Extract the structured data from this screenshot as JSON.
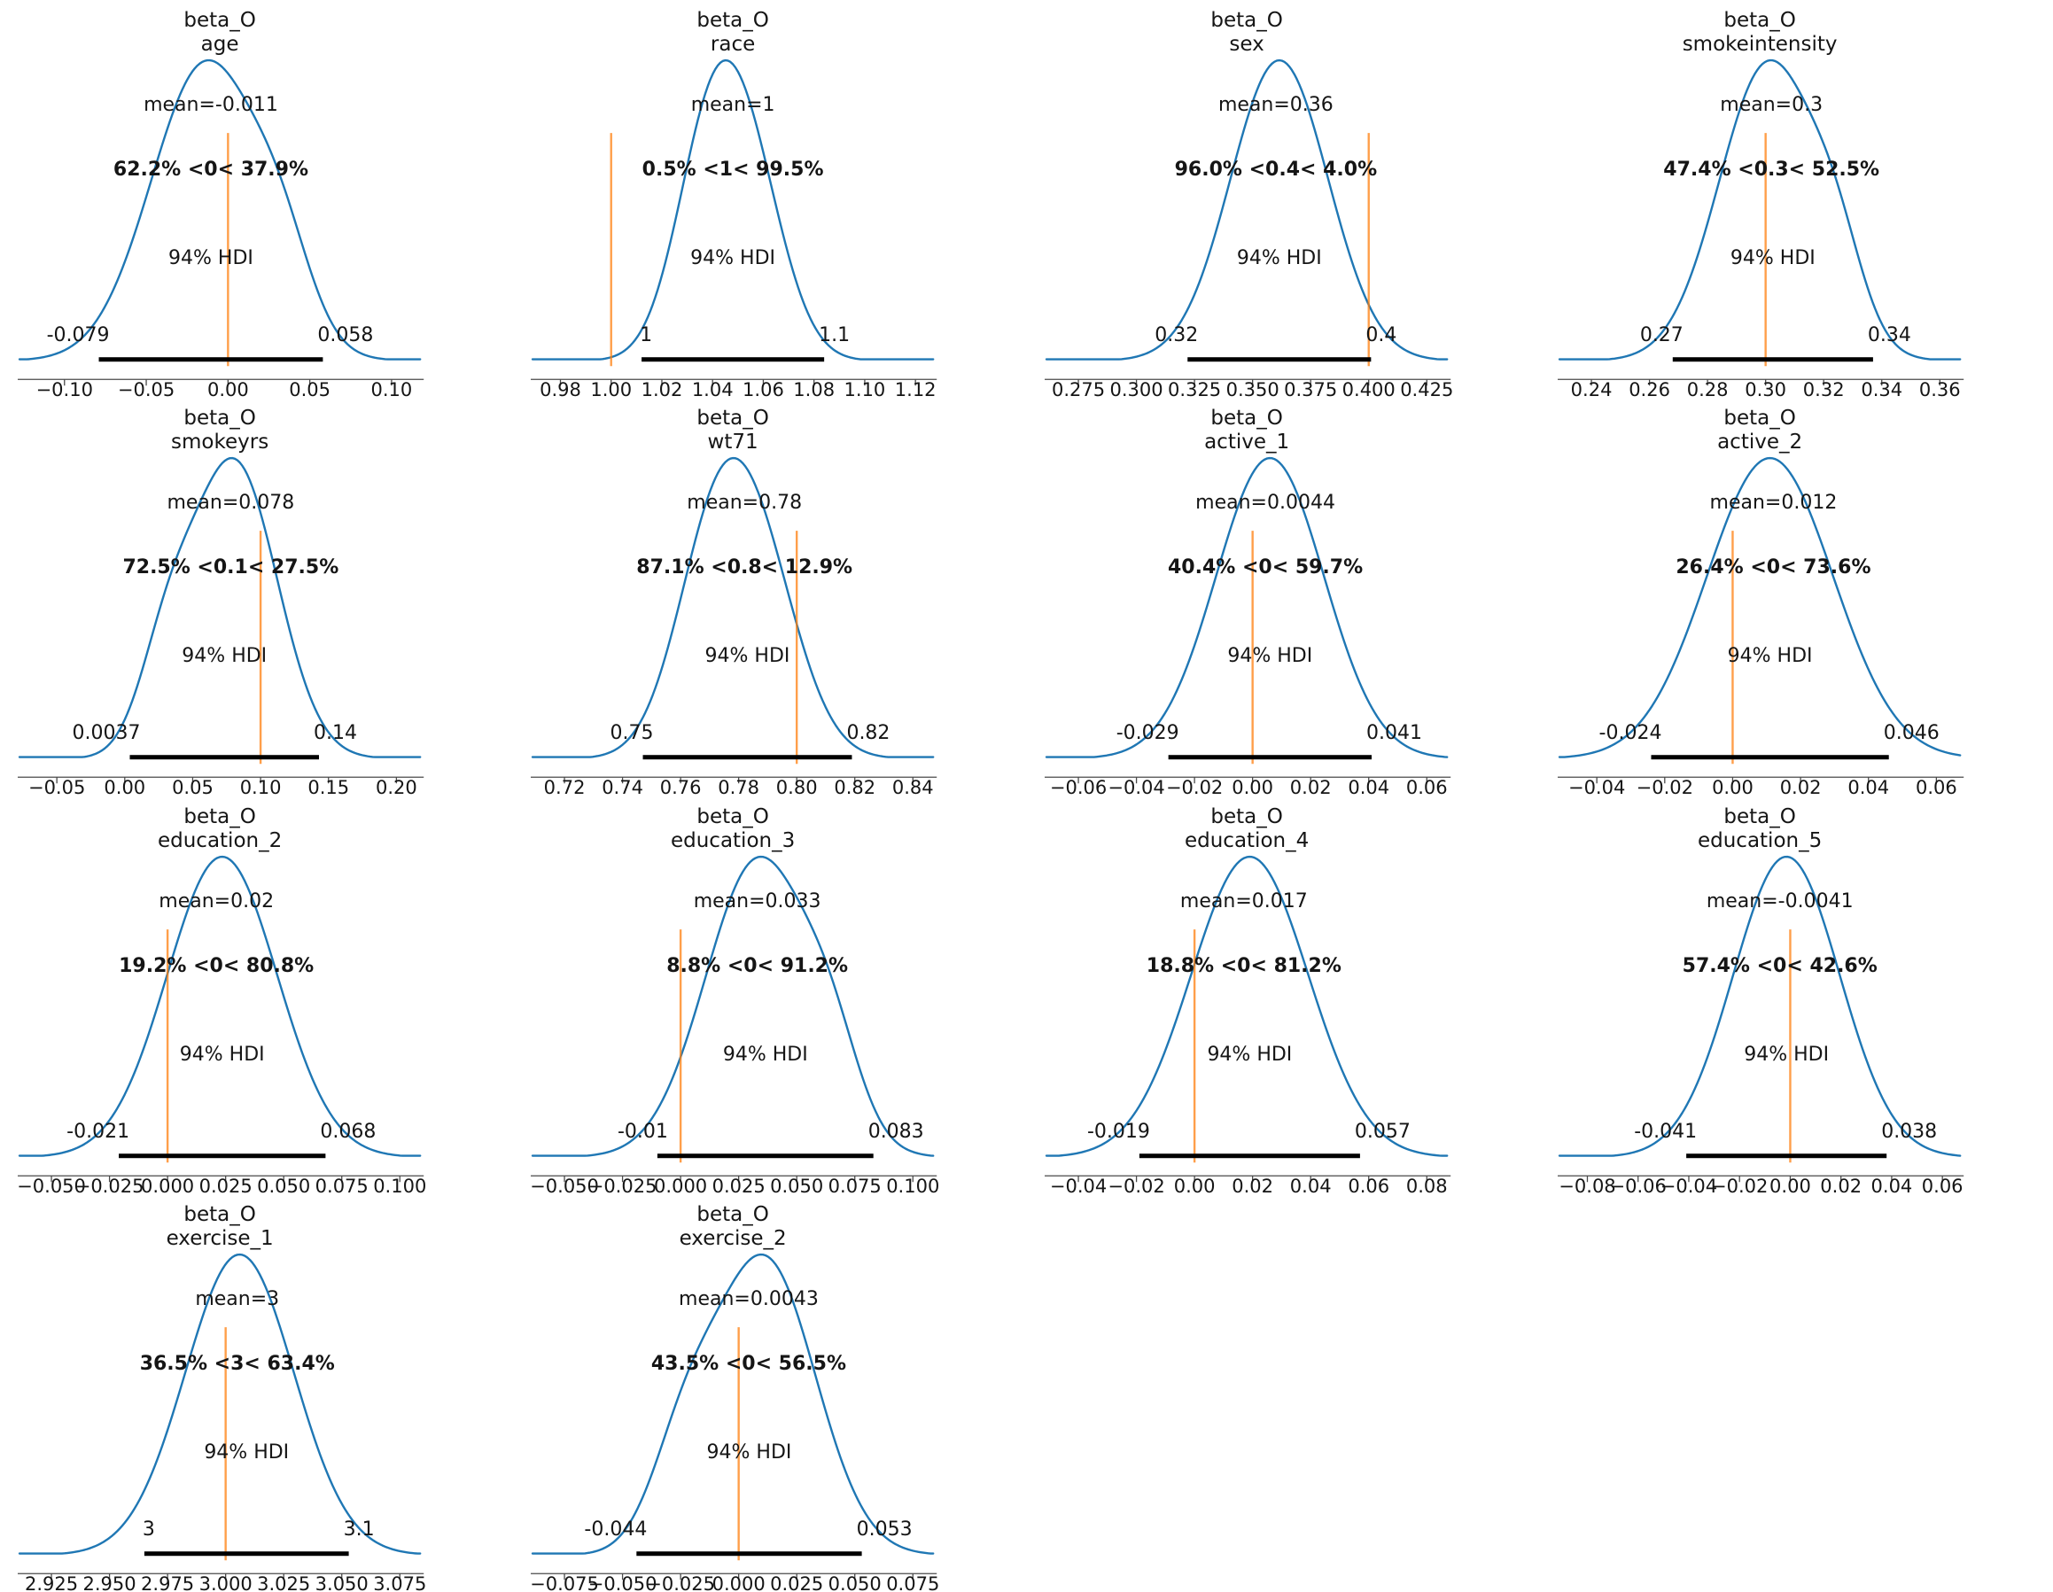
{
  "figure": {
    "grid": {
      "cols": 4,
      "rows": 4
    },
    "colors": {
      "curve": "#1f77b4",
      "ref_line": "#ff7f0e",
      "ref_text": "#ff7f0e",
      "hdi_bar": "#000000",
      "text": "#151515",
      "spine": "#4a4a4a",
      "background": "#ffffff"
    }
  },
  "chart_data": [
    {
      "type": "kde-posterior",
      "title": "beta_O",
      "subtitle": "age",
      "mean_label": "mean=-0.011",
      "mean_pos": -0.0105,
      "ref_val": 0,
      "pct_label": "62.2% <0< 37.9%",
      "hdi": {
        "label": "94% HDI",
        "low": -0.079,
        "high": 0.058,
        "low_label": "-0.079",
        "high_label": "0.058"
      },
      "xticks": [
        -0.1,
        -0.05,
        0.0,
        0.05,
        0.1
      ],
      "xtick_labels": [
        "−0.10",
        "−0.05",
        "0.00",
        "0.05",
        "0.10"
      ],
      "kde": {
        "center": -0.0105,
        "sigma": 0.0364,
        "shape": "right_shoulder"
      }
    },
    {
      "type": "kde-posterior",
      "title": "beta_O",
      "subtitle": "race",
      "mean_label": "mean=1",
      "mean_pos": 1.048,
      "ref_val": 1,
      "pct_label": "0.5% <1< 99.5%",
      "hdi": {
        "label": "94% HDI",
        "low": 1.012,
        "high": 1.084,
        "low_label": "1",
        "high_label": "1.1"
      },
      "xticks": [
        0.98,
        1.0,
        1.02,
        1.04,
        1.06,
        1.08,
        1.1,
        1.12
      ],
      "xtick_labels": [
        "0.98",
        "1.00",
        "1.02",
        "1.04",
        "1.06",
        "1.08",
        "1.10",
        "1.12"
      ],
      "kde": {
        "center": 1.048,
        "sigma": 0.0191,
        "shape": "bimodal"
      }
    },
    {
      "type": "kde-posterior",
      "title": "beta_O",
      "subtitle": "sex",
      "mean_label": "mean=0.36",
      "mean_pos": 0.36,
      "ref_val": 0.4,
      "pct_label": "96.0% <0.4< 4.0%",
      "hdi": {
        "label": "94% HDI",
        "low": 0.322,
        "high": 0.401,
        "low_label": "0.32",
        "high_label": "0.4"
      },
      "xticks": [
        0.275,
        0.3,
        0.325,
        0.35,
        0.375,
        0.4,
        0.425
      ],
      "xtick_labels": [
        "0.275",
        "0.300",
        "0.325",
        "0.350",
        "0.375",
        "0.400",
        "0.425"
      ],
      "kde": {
        "center": 0.3615,
        "sigma": 0.021,
        "shape": "unimodal"
      }
    },
    {
      "type": "kde-posterior",
      "title": "beta_O",
      "subtitle": "smokeintensity",
      "mean_label": "mean=0.3",
      "mean_pos": 0.302,
      "ref_val": 0.3,
      "pct_label": "47.4% <0.3< 52.5%",
      "hdi": {
        "label": "94% HDI",
        "low": 0.268,
        "high": 0.337,
        "low_label": "0.27",
        "high_label": "0.34"
      },
      "xticks": [
        0.24,
        0.26,
        0.28,
        0.3,
        0.32,
        0.34,
        0.36
      ],
      "xtick_labels": [
        "0.24",
        "0.26",
        "0.28",
        "0.30",
        "0.32",
        "0.34",
        "0.36"
      ],
      "kde": {
        "center": 0.3025,
        "sigma": 0.0184,
        "shape": "right_shoulder"
      }
    },
    {
      "type": "kde-posterior",
      "title": "beta_O",
      "subtitle": "smokeyrs",
      "mean_label": "mean=0.078",
      "mean_pos": 0.078,
      "ref_val": 0.1,
      "pct_label": "72.5% <0.1< 27.5%",
      "hdi": {
        "label": "94% HDI",
        "low": 0.0037,
        "high": 0.143,
        "low_label": "0.0037",
        "high_label": "0.14"
      },
      "xticks": [
        -0.05,
        0.0,
        0.05,
        0.1,
        0.15,
        0.2
      ],
      "xtick_labels": [
        "−0.05",
        "0.00",
        "0.05",
        "0.10",
        "0.15",
        "0.20"
      ],
      "kde": {
        "center": 0.0734,
        "sigma": 0.037,
        "shape": "left_shoulder"
      }
    },
    {
      "type": "kde-posterior",
      "title": "beta_O",
      "subtitle": "wt71",
      "mean_label": "mean=0.78",
      "mean_pos": 0.782,
      "ref_val": 0.8,
      "pct_label": "87.1% <0.8< 12.9%",
      "hdi": {
        "label": "94% HDI",
        "low": 0.747,
        "high": 0.819,
        "low_label": "0.75",
        "high_label": "0.82"
      },
      "xticks": [
        0.72,
        0.74,
        0.76,
        0.78,
        0.8,
        0.82,
        0.84
      ],
      "xtick_labels": [
        "0.72",
        "0.74",
        "0.76",
        "0.78",
        "0.80",
        "0.82",
        "0.84"
      ],
      "kde": {
        "center": 0.781,
        "sigma": 0.0191,
        "shape": "bimodal"
      }
    },
    {
      "type": "kde-posterior",
      "title": "beta_O",
      "subtitle": "active_1",
      "mean_label": "mean=0.0044",
      "mean_pos": 0.0044,
      "ref_val": 0,
      "pct_label": "40.4% <0< 59.7%",
      "hdi": {
        "label": "94% HDI",
        "low": -0.029,
        "high": 0.041,
        "low_label": "-0.029",
        "high_label": "0.041"
      },
      "xticks": [
        -0.06,
        -0.04,
        -0.02,
        0.0,
        0.02,
        0.04,
        0.06
      ],
      "xtick_labels": [
        "−0.06",
        "−0.04",
        "−0.02",
        "0.00",
        "0.02",
        "0.04",
        "0.06"
      ],
      "kde": {
        "center": 0.006,
        "sigma": 0.0186,
        "shape": "unimodal"
      }
    },
    {
      "type": "kde-posterior",
      "title": "beta_O",
      "subtitle": "active_2",
      "mean_label": "mean=0.012",
      "mean_pos": 0.012,
      "ref_val": 0,
      "pct_label": "26.4% <0< 73.6%",
      "hdi": {
        "label": "94% HDI",
        "low": -0.024,
        "high": 0.046,
        "low_label": "-0.024",
        "high_label": "0.046"
      },
      "xticks": [
        -0.04,
        -0.02,
        0.0,
        0.02,
        0.04,
        0.06
      ],
      "xtick_labels": [
        "−0.04",
        "−0.02",
        "0.00",
        "0.02",
        "0.04",
        "0.06"
      ],
      "kde": {
        "center": 0.011,
        "sigma": 0.0186,
        "shape": "unimodal"
      }
    },
    {
      "type": "kde-posterior",
      "title": "beta_O",
      "subtitle": "education_2",
      "mean_label": "mean=0.02",
      "mean_pos": 0.021,
      "ref_val": 0,
      "pct_label": "19.2% <0< 80.8%",
      "hdi": {
        "label": "94% HDI",
        "low": -0.021,
        "high": 0.068,
        "low_label": "-0.021",
        "high_label": "0.068"
      },
      "xticks": [
        -0.05,
        -0.025,
        0.0,
        0.025,
        0.05,
        0.075,
        0.1
      ],
      "xtick_labels": [
        "−0.050",
        "−0.025",
        "0.000",
        "0.025",
        "0.050",
        "0.075",
        "0.100"
      ],
      "kde": {
        "center": 0.0235,
        "sigma": 0.0237,
        "shape": "unimodal"
      }
    },
    {
      "type": "kde-posterior",
      "title": "beta_O",
      "subtitle": "education_3",
      "mean_label": "mean=0.033",
      "mean_pos": 0.033,
      "ref_val": 0,
      "pct_label": "8.8% <0< 91.2%",
      "hdi": {
        "label": "94% HDI",
        "low": -0.01,
        "high": 0.083,
        "low_label": "-0.01",
        "high_label": "0.083"
      },
      "xticks": [
        -0.05,
        -0.025,
        0.0,
        0.025,
        0.05,
        0.075,
        0.1
      ],
      "xtick_labels": [
        "−0.050",
        "−0.025",
        "0.000",
        "0.025",
        "0.050",
        "0.075",
        "0.100"
      ],
      "kde": {
        "center": 0.0355,
        "sigma": 0.0247,
        "shape": "right_shoulder"
      }
    },
    {
      "type": "kde-posterior",
      "title": "beta_O",
      "subtitle": "education_4",
      "mean_label": "mean=0.017",
      "mean_pos": 0.017,
      "ref_val": 0,
      "pct_label": "18.8% <0< 81.2%",
      "hdi": {
        "label": "94% HDI",
        "low": -0.019,
        "high": 0.057,
        "low_label": "-0.019",
        "high_label": "0.057"
      },
      "xticks": [
        -0.04,
        -0.02,
        0.0,
        0.02,
        0.04,
        0.06,
        0.08
      ],
      "xtick_labels": [
        "−0.04",
        "−0.02",
        "0.00",
        "0.02",
        "0.04",
        "0.06",
        "0.08"
      ],
      "kde": {
        "center": 0.019,
        "sigma": 0.0202,
        "shape": "unimodal"
      }
    },
    {
      "type": "kde-posterior",
      "title": "beta_O",
      "subtitle": "education_5",
      "mean_label": "mean=-0.0041",
      "mean_pos": -0.0041,
      "ref_val": 0,
      "pct_label": "57.4% <0< 42.6%",
      "hdi": {
        "label": "94% HDI",
        "low": -0.041,
        "high": 0.038,
        "low_label": "-0.041",
        "high_label": "0.038"
      },
      "xticks": [
        -0.08,
        -0.06,
        -0.04,
        -0.02,
        0.0,
        0.02,
        0.04,
        0.06
      ],
      "xtick_labels": [
        "−0.08",
        "−0.06",
        "−0.04",
        "−0.02",
        "0.00",
        "0.02",
        "0.04",
        "0.06"
      ],
      "kde": {
        "center": -0.0015,
        "sigma": 0.021,
        "shape": "unimodal"
      }
    },
    {
      "type": "kde-posterior",
      "title": "beta_O",
      "subtitle": "exercise_1",
      "mean_label": "mean=3",
      "mean_pos": 3.005,
      "ref_val": 3,
      "pct_label": "36.5% <3< 63.4%",
      "hdi": {
        "label": "94% HDI",
        "low": 2.965,
        "high": 3.053,
        "low_label": "3",
        "high_label": "3.1"
      },
      "xticks": [
        2.925,
        2.95,
        2.975,
        3.0,
        3.025,
        3.05,
        3.075
      ],
      "xtick_labels": [
        "2.925",
        "2.950",
        "2.975",
        "3.000",
        "3.025",
        "3.050",
        "3.075"
      ],
      "kde": {
        "center": 3.006,
        "sigma": 0.0234,
        "shape": "unimodal"
      }
    },
    {
      "type": "kde-posterior",
      "title": "beta_O",
      "subtitle": "exercise_2",
      "mean_label": "mean=0.0043",
      "mean_pos": 0.0043,
      "ref_val": 0,
      "pct_label": "43.5% <0< 56.5%",
      "hdi": {
        "label": "94% HDI",
        "low": -0.044,
        "high": 0.053,
        "low_label": "-0.044",
        "high_label": "0.053"
      },
      "xticks": [
        -0.075,
        -0.05,
        -0.025,
        0.0,
        0.025,
        0.05,
        0.075
      ],
      "xtick_labels": [
        "−0.075",
        "−0.050",
        "−0.025",
        "0.000",
        "0.025",
        "0.050",
        "0.075"
      ],
      "kde": {
        "center": 0.006,
        "sigma": 0.0258,
        "shape": "left_shoulder"
      }
    }
  ]
}
